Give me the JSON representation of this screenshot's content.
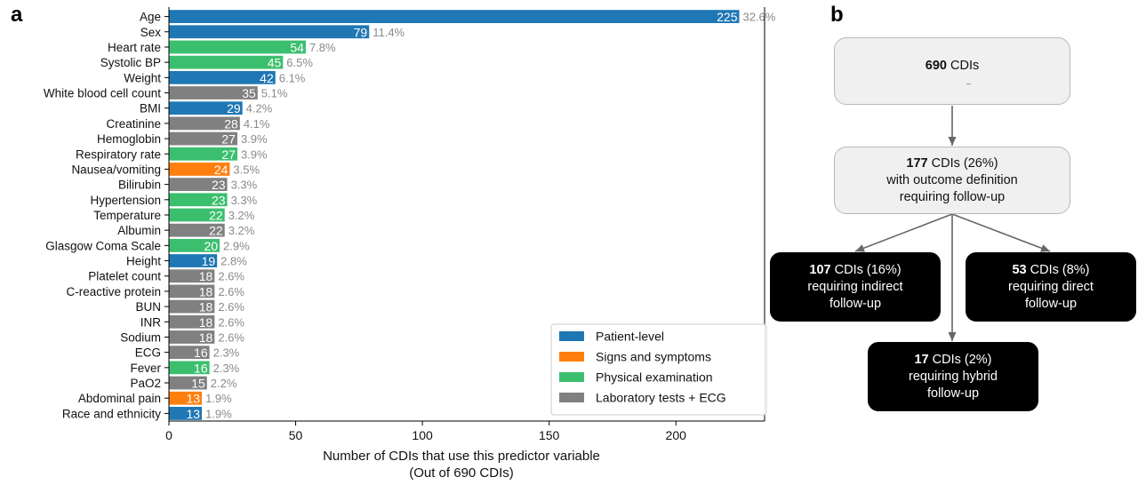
{
  "panel_a_letter": "a",
  "panel_b_letter": "b",
  "chart_data": {
    "type": "bar",
    "orientation": "horizontal",
    "title": "",
    "xlabel": "Number of CDIs that use this predictor variable",
    "xlabel_line2": "(Out of 690 CDIs)",
    "ylabel": "",
    "xlim": [
      0,
      235
    ],
    "xticks": [
      0,
      50,
      100,
      150,
      200
    ],
    "grid": false,
    "legend_position": "bottom-right",
    "groups": [
      {
        "name": "Patient-level",
        "color": "#1f77b4"
      },
      {
        "name": "Signs and symptoms",
        "color": "#ff7f0e"
      },
      {
        "name": "Physical examination",
        "color": "#3bbf6e"
      },
      {
        "name": "Laboratory tests + ECG",
        "color": "#808080"
      }
    ],
    "bars": [
      {
        "label": "Age",
        "value": 225,
        "pct": "32.6%",
        "group": 0
      },
      {
        "label": "Sex",
        "value": 79,
        "pct": "11.4%",
        "group": 0
      },
      {
        "label": "Heart rate",
        "value": 54,
        "pct": "7.8%",
        "group": 2
      },
      {
        "label": "Systolic BP",
        "value": 45,
        "pct": "6.5%",
        "group": 2
      },
      {
        "label": "Weight",
        "value": 42,
        "pct": "6.1%",
        "group": 0
      },
      {
        "label": "White blood cell count",
        "value": 35,
        "pct": "5.1%",
        "group": 3
      },
      {
        "label": "BMI",
        "value": 29,
        "pct": "4.2%",
        "group": 0
      },
      {
        "label": "Creatinine",
        "value": 28,
        "pct": "4.1%",
        "group": 3
      },
      {
        "label": "Hemoglobin",
        "value": 27,
        "pct": "3.9%",
        "group": 3
      },
      {
        "label": "Respiratory rate",
        "value": 27,
        "pct": "3.9%",
        "group": 2
      },
      {
        "label": "Nausea/vomiting",
        "value": 24,
        "pct": "3.5%",
        "group": 1
      },
      {
        "label": "Bilirubin",
        "value": 23,
        "pct": "3.3%",
        "group": 3
      },
      {
        "label": "Hypertension",
        "value": 23,
        "pct": "3.3%",
        "group": 2
      },
      {
        "label": "Temperature",
        "value": 22,
        "pct": "3.2%",
        "group": 2
      },
      {
        "label": "Albumin",
        "value": 22,
        "pct": "3.2%",
        "group": 3
      },
      {
        "label": "Glasgow Coma Scale",
        "value": 20,
        "pct": "2.9%",
        "group": 2
      },
      {
        "label": "Height",
        "value": 19,
        "pct": "2.8%",
        "group": 0
      },
      {
        "label": "Platelet count",
        "value": 18,
        "pct": "2.6%",
        "group": 3
      },
      {
        "label": "C-reactive protein",
        "value": 18,
        "pct": "2.6%",
        "group": 3
      },
      {
        "label": "BUN",
        "value": 18,
        "pct": "2.6%",
        "group": 3
      },
      {
        "label": "INR",
        "value": 18,
        "pct": "2.6%",
        "group": 3
      },
      {
        "label": "Sodium",
        "value": 18,
        "pct": "2.6%",
        "group": 3
      },
      {
        "label": "ECG",
        "value": 16,
        "pct": "2.3%",
        "group": 3
      },
      {
        "label": "Fever",
        "value": 16,
        "pct": "2.3%",
        "group": 2
      },
      {
        "label": "PaO2",
        "value": 15,
        "pct": "2.2%",
        "group": 3
      },
      {
        "label": "Abdominal pain",
        "value": 13,
        "pct": "1.9%",
        "group": 1
      },
      {
        "label": "Race and ethnicity",
        "value": 13,
        "pct": "1.9%",
        "group": 0
      }
    ]
  },
  "flowchart": {
    "top": {
      "count": "690",
      "text": " CDIs"
    },
    "middle": {
      "count": "177",
      "line1": " CDIs (26%)",
      "line2": "with outcome definition",
      "line3": "requiring follow-up"
    },
    "left": {
      "count": "107",
      "line1": " CDIs (16%)",
      "line2": "requiring indirect",
      "line3": "follow-up"
    },
    "right": {
      "count": "53",
      "line1": " CDIs (8%)",
      "line2": "requiring direct",
      "line3": "follow-up"
    },
    "bottom": {
      "count": "17",
      "line1": " CDIs (2%)",
      "line2": "requiring hybrid",
      "line3": "follow-up"
    },
    "arrow_color": "#666666"
  }
}
